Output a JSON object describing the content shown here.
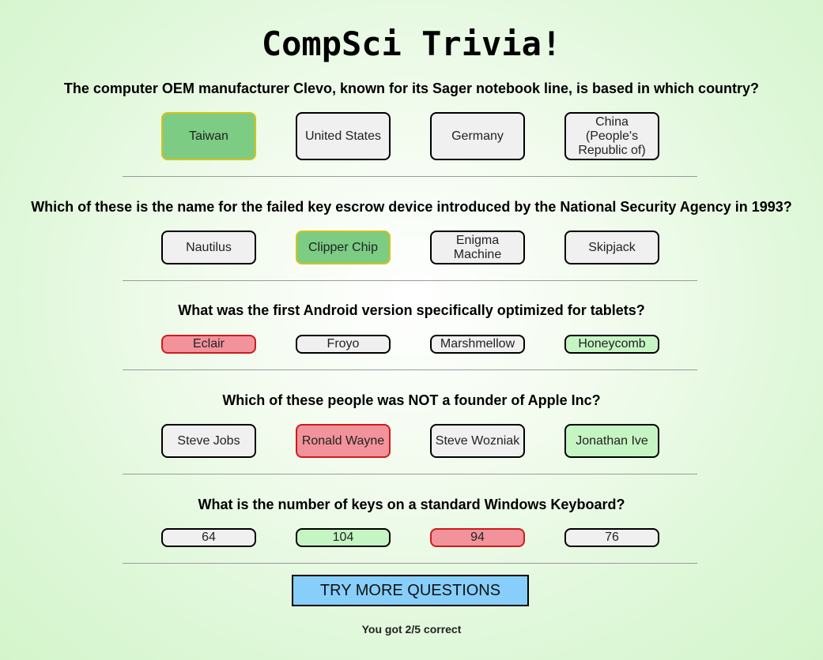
{
  "title": "CompSci Trivia!",
  "questions": [
    {
      "text": "The computer OEM manufacturer Clevo, known for its Sager notebook line, is based in which country?",
      "answers": [
        "Taiwan",
        "United States",
        "Germany",
        "China (People's Republic of)"
      ]
    },
    {
      "text": "Which of these is the name for the failed key escrow device introduced by the National Security Agency in 1993?",
      "answers": [
        "Nautilus",
        "Clipper Chip",
        "Enigma Machine",
        "Skipjack"
      ]
    },
    {
      "text": "What was the first Android version specifically optimized for tablets?",
      "answers": [
        "Eclair",
        "Froyo",
        "Marshmellow",
        "Honeycomb"
      ]
    },
    {
      "text": "Which of these people was NOT a founder of Apple Inc?",
      "answers": [
        "Steve Jobs",
        "Ronald Wayne",
        "Steve Wozniak",
        "Jonathan Ive"
      ]
    },
    {
      "text": "What is the number of keys on a standard Windows Keyboard?",
      "answers": [
        "64",
        "104",
        "94",
        "76"
      ]
    }
  ],
  "try_more_label": "TRY MORE QUESTIONS",
  "score_text": "You got 2/5 correct",
  "colors": {
    "selected_correct_fill": "#7ccc84",
    "selected_correct_border": "#d4c21a",
    "wrong_fill": "#f2939b",
    "wrong_border": "#cc1c1c",
    "correct_fill": "#c6f5c4",
    "neutral_fill": "#f0f0f0",
    "button_fill": "#87cffa"
  }
}
